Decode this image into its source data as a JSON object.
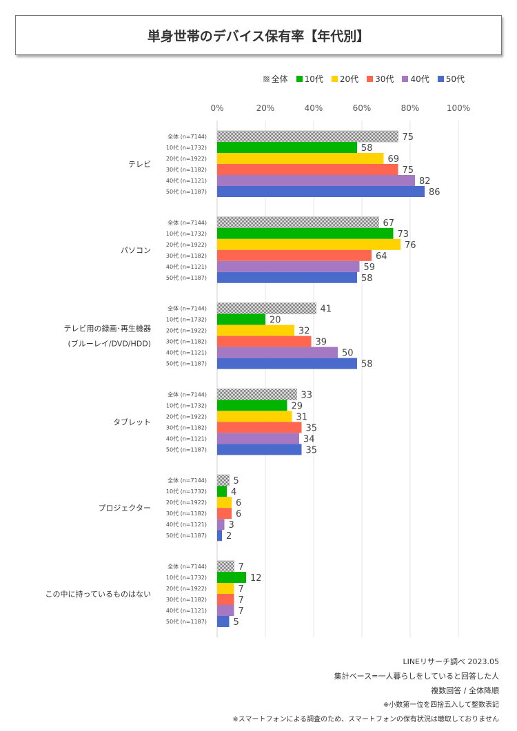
{
  "title": "単身世帯のデバイス保有率【年代別】",
  "chart_data": {
    "type": "bar",
    "orientation": "horizontal",
    "title": "単身世帯のデバイス保有率【年代別】",
    "xlim": [
      0,
      100
    ],
    "x_ticks": [
      "0%",
      "20%",
      "40%",
      "60%",
      "80%",
      "100%"
    ],
    "grid": true,
    "legend_placement": "top-right",
    "series": [
      {
        "name": "全体",
        "label": "全体 (n=7144)",
        "color": "hatched-gray"
      },
      {
        "name": "10代",
        "label": "10代 (n=1732)",
        "color": "#00B400"
      },
      {
        "name": "20代",
        "label": "20代 (n=1922)",
        "color": "#FFD200"
      },
      {
        "name": "30代",
        "label": "30代 (n=1182)",
        "color": "#FF6650"
      },
      {
        "name": "40代",
        "label": "40代 (n=1121)",
        "color": "#A578C3"
      },
      {
        "name": "50代",
        "label": "50代 (n=1187)",
        "color": "#4A6BCB"
      }
    ],
    "categories": [
      {
        "label": [
          "テレビ"
        ],
        "values": [
          75,
          58,
          69,
          75,
          82,
          86
        ]
      },
      {
        "label": [
          "パソコン"
        ],
        "values": [
          67,
          73,
          76,
          64,
          59,
          58
        ]
      },
      {
        "label": [
          "テレビ用の録画･再生機器",
          "(ブルーレイ/DVD/HDD)"
        ],
        "values": [
          41,
          20,
          32,
          39,
          50,
          58
        ]
      },
      {
        "label": [
          "タブレット"
        ],
        "values": [
          33,
          29,
          31,
          35,
          34,
          35
        ]
      },
      {
        "label": [
          "プロジェクター"
        ],
        "values": [
          5,
          4,
          6,
          6,
          3,
          2
        ]
      },
      {
        "label": [
          "この中に持っているものはない"
        ],
        "values": [
          7,
          12,
          7,
          7,
          7,
          5
        ]
      }
    ]
  },
  "notes": [
    "LINEリサーチ調べ 2023.05",
    "集計ベース=一人暮らしをしていると回答した人",
    "複数回答 / 全体降順",
    "※小数第一位を四捨五入して整数表記",
    "※スマートフォンによる調査のため、スマートフォンの保有状況は聴取しておりません"
  ]
}
